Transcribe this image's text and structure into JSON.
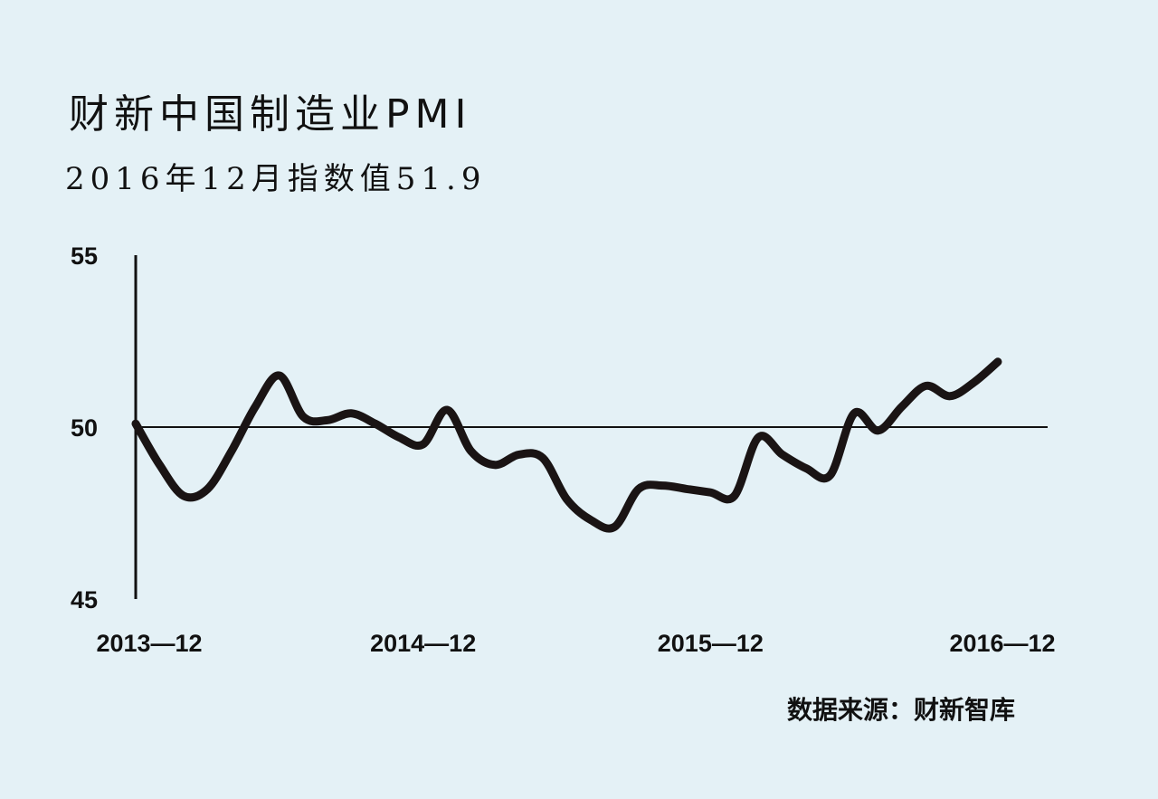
{
  "header": {
    "title": "财新中国制造业PMI",
    "subtitle": "2016年12月指数值51.9"
  },
  "source": "数据来源：财新智库",
  "colors": {
    "background": "#e4f1f6",
    "line": "#1a1414",
    "axis": "#111111"
  },
  "chart_data": {
    "type": "line",
    "title": "财新中国制造业PMI",
    "subtitle": "2016年12月指数值51.9",
    "xlabel": "",
    "ylabel": "",
    "ylim": [
      45,
      55
    ],
    "yticks": [
      45,
      50,
      55
    ],
    "reference_line": 50,
    "grid": false,
    "legend": "none",
    "x_tick_labels": [
      {
        "label": "2013—12",
        "index": 0
      },
      {
        "label": "2014—12",
        "index": 12
      },
      {
        "label": "2015—12",
        "index": 24
      },
      {
        "label": "2016—12",
        "index": 36
      }
    ],
    "x": [
      "2013-12",
      "2014-01",
      "2014-02",
      "2014-03",
      "2014-04",
      "2014-05",
      "2014-06",
      "2014-07",
      "2014-08",
      "2014-09",
      "2014-10",
      "2014-11",
      "2014-12",
      "2015-01",
      "2015-02",
      "2015-03",
      "2015-04",
      "2015-05",
      "2015-06",
      "2015-07",
      "2015-08",
      "2015-09",
      "2015-10",
      "2015-11",
      "2015-12",
      "2016-01",
      "2016-02",
      "2016-03",
      "2016-04",
      "2016-05",
      "2016-06",
      "2016-07",
      "2016-08",
      "2016-09",
      "2016-10",
      "2016-11",
      "2016-12"
    ],
    "series": [
      {
        "values": [
          50.1,
          48.9,
          48.0,
          48.2,
          49.3,
          50.6,
          51.5,
          50.3,
          50.2,
          50.4,
          50.1,
          49.7,
          49.5,
          50.5,
          49.3,
          48.9,
          49.2,
          49.1,
          47.9,
          47.3,
          47.1,
          48.2,
          48.3,
          48.2,
          48.1,
          48.0,
          49.7,
          49.2,
          48.8,
          48.6,
          50.4,
          49.9,
          50.6,
          51.2,
          50.9,
          51.3,
          51.9
        ]
      }
    ]
  }
}
